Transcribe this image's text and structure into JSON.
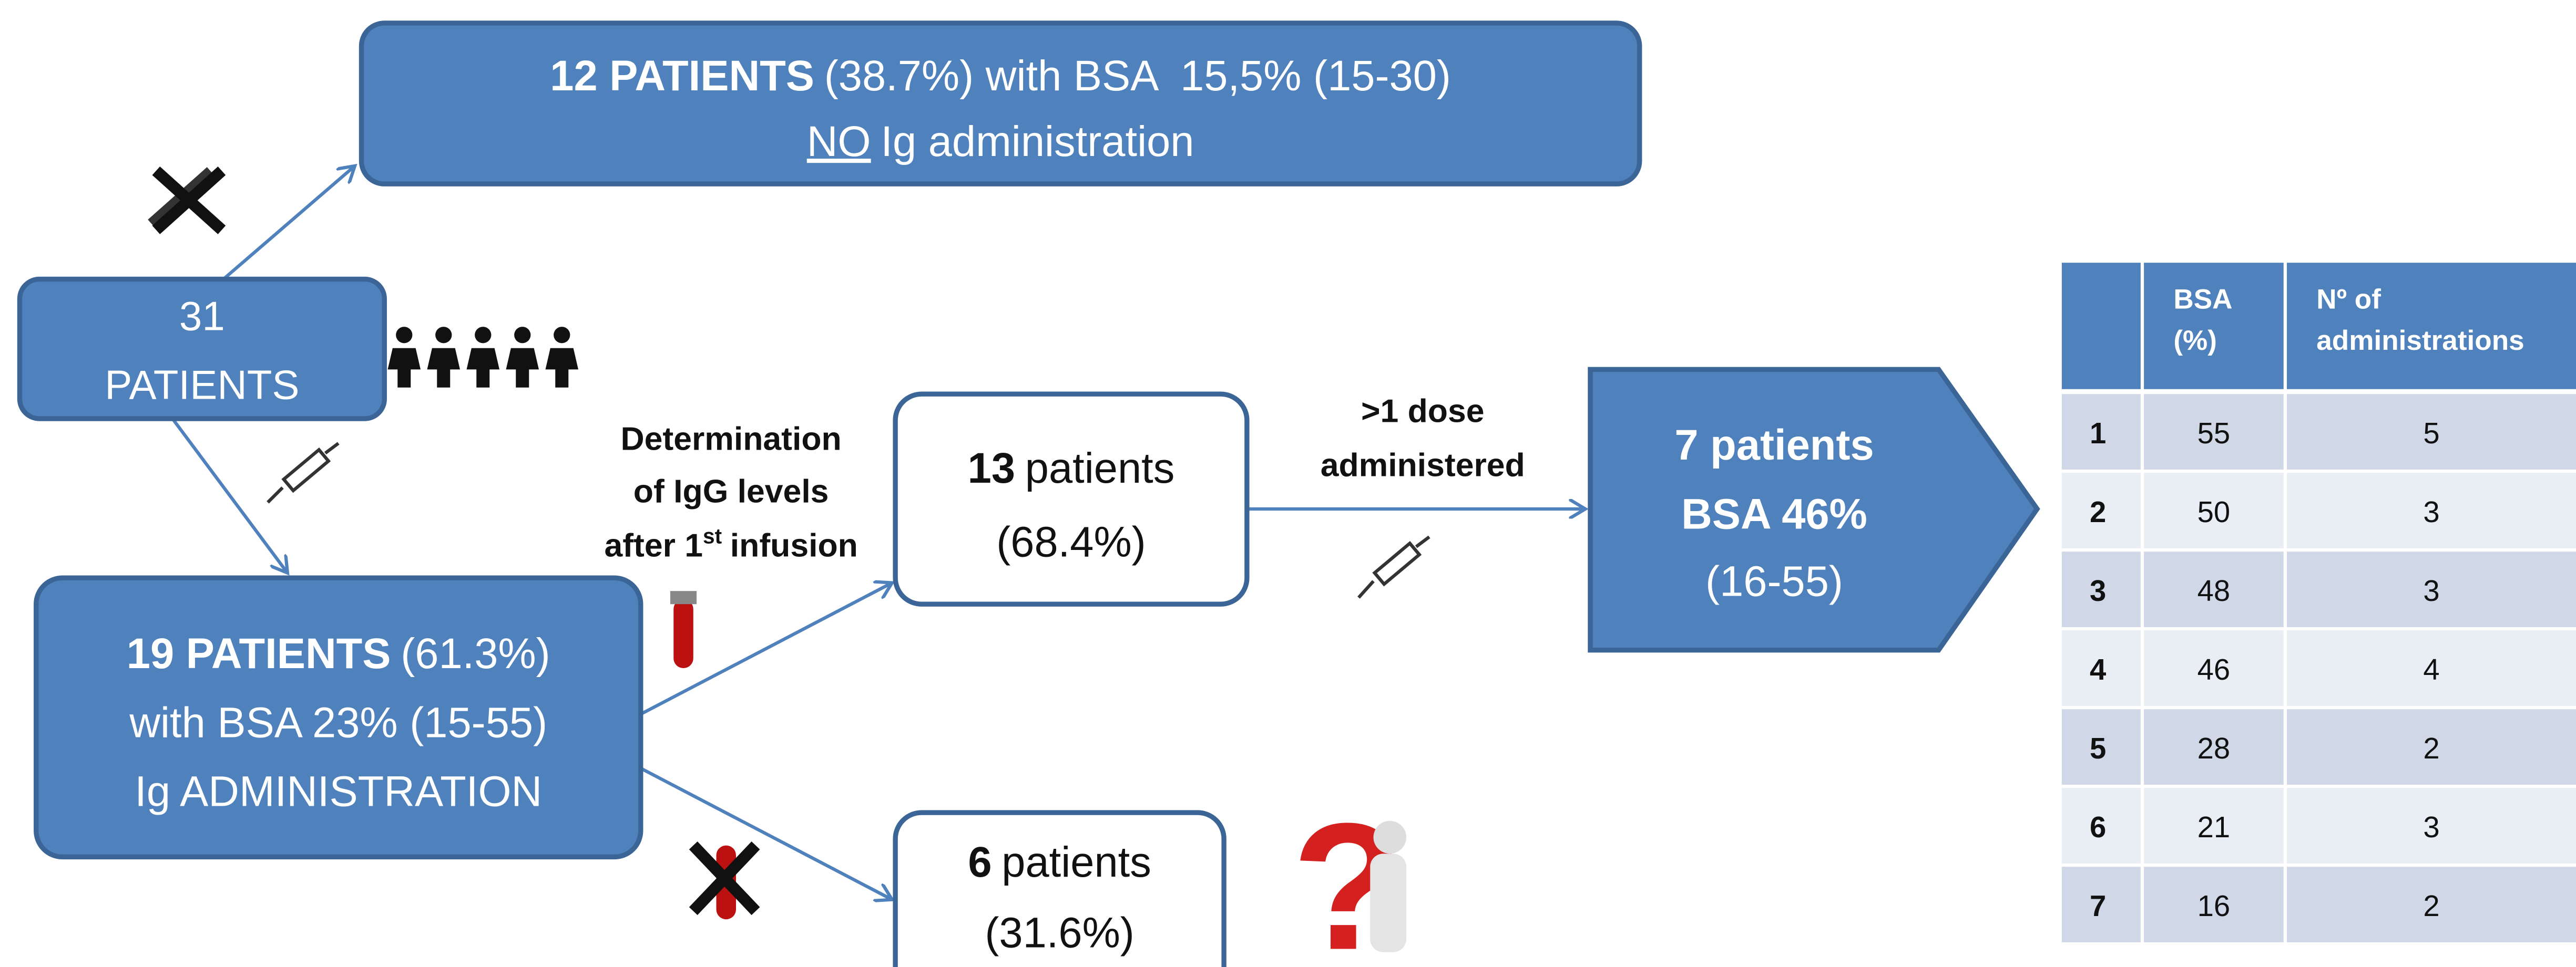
{
  "start": {
    "count": "31",
    "label": "PATIENTS"
  },
  "no_ig": {
    "line1_bold": "12 PATIENTS",
    "line1": "(38.7%) with BSA  15,5% (15-30)",
    "line2_underlined": "NO",
    "line2": "Ig administration"
  },
  "ig": {
    "line1_bold": "19 PATIENTS",
    "line1": "(61.3%)",
    "line2": "with BSA 23% (15-55)",
    "line3": "Ig ADMINISTRATION"
  },
  "determination": {
    "line1": "Determination",
    "line2": "of IgG levels",
    "line3_a": "after 1",
    "line3_sup": "st",
    "line3_b": "infusion"
  },
  "measured": {
    "bold": "13",
    "rest": "patients",
    "pct": "(68.4%)"
  },
  "not_measured": {
    "bold": "6",
    "rest": "patients",
    "pct": "(31.6%)"
  },
  "dose_label": {
    "line1": ">1 dose",
    "line2": "administered"
  },
  "result": {
    "line1": "7 patients",
    "line2": "BSA 46%",
    "line3": "(16-55)"
  },
  "table": {
    "headers": [
      [
        "BSA",
        "(%)"
      ],
      [
        "Nº of",
        "administrations"
      ]
    ],
    "rows": [
      [
        1,
        55,
        5
      ],
      [
        2,
        50,
        3
      ],
      [
        3,
        48,
        3
      ],
      [
        4,
        46,
        4
      ],
      [
        5,
        28,
        2
      ],
      [
        6,
        21,
        3
      ],
      [
        7,
        16,
        2
      ]
    ]
  }
}
